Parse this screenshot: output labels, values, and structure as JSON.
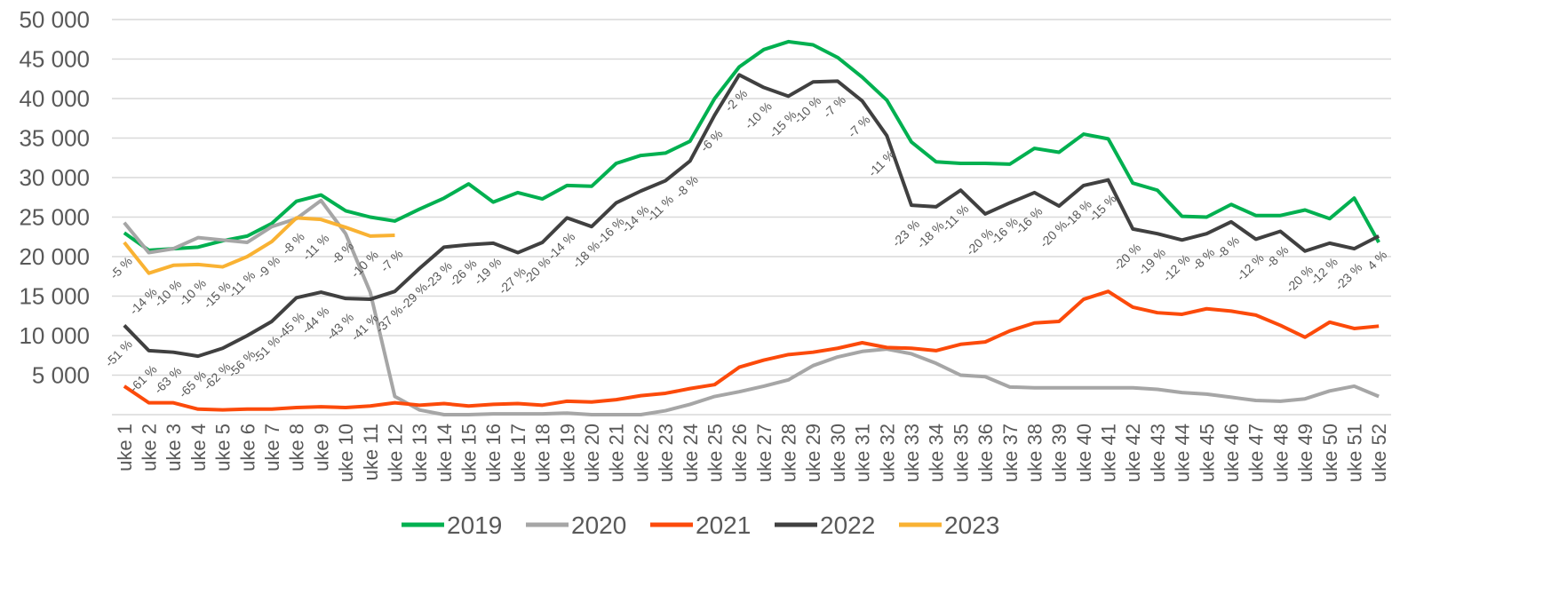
{
  "chart_data": {
    "type": "line",
    "categories": [
      "uke 1",
      "uke 2",
      "uke 3",
      "uke 4",
      "uke 5",
      "uke 6",
      "uke 7",
      "uke 8",
      "uke 9",
      "uke 10",
      "uke 11",
      "uke 12",
      "uke 13",
      "uke 14",
      "uke 15",
      "uke 16",
      "uke 17",
      "uke 18",
      "uke 19",
      "uke 20",
      "uke 21",
      "uke 22",
      "uke 23",
      "uke 24",
      "uke 25",
      "uke 26",
      "uke 27",
      "uke 28",
      "uke 29",
      "uke 30",
      "uke 31",
      "uke 32",
      "uke 33",
      "uke 34",
      "uke 35",
      "uke 36",
      "uke 37",
      "uke 38",
      "uke 39",
      "uke 40",
      "uke 41",
      "uke 42",
      "uke 43",
      "uke 44",
      "uke 45",
      "uke 46",
      "uke 47",
      "uke 48",
      "uke 49",
      "uke 50",
      "uke 51",
      "uke 52"
    ],
    "ylim": [
      0,
      50000
    ],
    "yticks": [
      {
        "value": 5000,
        "label": "5 000"
      },
      {
        "value": 10000,
        "label": "10 000"
      },
      {
        "value": 15000,
        "label": "15 000"
      },
      {
        "value": 20000,
        "label": "20 000"
      },
      {
        "value": 25000,
        "label": "25 000"
      },
      {
        "value": 30000,
        "label": "30 000"
      },
      {
        "value": 35000,
        "label": "35 000"
      },
      {
        "value": 40000,
        "label": "40 000"
      },
      {
        "value": 45000,
        "label": "45 000"
      },
      {
        "value": 50000,
        "label": "50 000"
      }
    ],
    "grid": true,
    "legend": "bottom",
    "series": [
      {
        "name": "2019",
        "color": "#00b050",
        "values": [
          23000,
          20800,
          21000,
          21200,
          22000,
          22600,
          24200,
          27000,
          27800,
          25800,
          25000,
          24500,
          26000,
          27400,
          29200,
          26900,
          28100,
          27300,
          29000,
          28900,
          31800,
          32800,
          33100,
          34600,
          40000,
          44000,
          46200,
          47200,
          46800,
          45200,
          42700,
          39800,
          34500,
          32000,
          31800,
          31800,
          31700,
          33700,
          33200,
          35500,
          34900,
          29300,
          28400,
          25100,
          25000,
          26600,
          25200,
          25200,
          25900,
          24800,
          27400,
          21800
        ]
      },
      {
        "name": "2020",
        "color": "#a6a6a6",
        "values": [
          24300,
          20500,
          21000,
          22400,
          22100,
          21800,
          23800,
          24800,
          27100,
          22900,
          15500,
          2300,
          600,
          0,
          0,
          100,
          100,
          100,
          200,
          0,
          0,
          0,
          500,
          1300,
          2300,
          2900,
          3600,
          4400,
          6200,
          7300,
          8000,
          8300,
          7700,
          6500,
          5000,
          4800,
          3500,
          3400,
          3400,
          3400,
          3400,
          3400,
          3200,
          2800,
          2600,
          2200,
          1800,
          1700,
          2000,
          3000,
          3600,
          2300
        ]
      },
      {
        "name": "2021",
        "color": "#fc4a0a",
        "values": [
          3600,
          1500,
          1500,
          700,
          600,
          700,
          700,
          900,
          1000,
          900,
          1100,
          1500,
          1200,
          1400,
          1100,
          1300,
          1400,
          1200,
          1700,
          1600,
          1900,
          2400,
          2700,
          3300,
          3800,
          6000,
          6900,
          7600,
          7900,
          8400,
          9100,
          8500,
          8400,
          8100,
          8900,
          9200,
          10600,
          11600,
          11800,
          14600,
          15600,
          13600,
          12900,
          12700,
          13400,
          13100,
          12600,
          11300,
          9800,
          11700,
          10900,
          11200
        ]
      },
      {
        "name": "2022",
        "color": "#404040",
        "values": [
          11300,
          8100,
          7900,
          7400,
          8400,
          10000,
          11800,
          14800,
          15500,
          14700,
          14600,
          15600,
          18500,
          21200,
          21500,
          21700,
          20500,
          21800,
          24900,
          23800,
          26800,
          28300,
          29600,
          32100,
          37900,
          43000,
          41400,
          40300,
          42100,
          42200,
          39700,
          35300,
          26500,
          26300,
          28400,
          25400,
          26800,
          28100,
          26400,
          29000,
          29700,
          23500,
          22900,
          22100,
          22900,
          24400,
          22200,
          23200,
          20700,
          21700,
          21000,
          22600
        ],
        "labels": [
          "-51 %",
          "-61 %",
          "-63 %",
          "-65 %",
          "-62 %",
          "-56 %",
          "-51 %",
          "-45 %",
          "-44 %",
          "-43 %",
          "-41 %",
          "-37 %",
          "-29 %",
          "-23 %",
          "-26 %",
          "-19 %",
          "-27 %",
          "-20 %",
          "-14 %",
          "-18 %",
          "-16 %",
          "-14 %",
          "-11 %",
          "-8 %",
          "-6 %",
          "-2 %",
          "-10 %",
          "-15 %",
          "-10 %",
          "-7 %",
          "-7 %",
          "-11 %",
          "-23 %",
          "-18 %",
          "-11 %",
          "-20 %",
          "-16 %",
          "-16 %",
          "-20 %",
          "-18 %",
          "-15 %",
          "-20 %",
          "-19 %",
          "-12 %",
          "-8 %",
          "-8 %",
          "-12 %",
          "-8 %",
          "-20 %",
          "-12 %",
          "-23 %",
          "4 %"
        ]
      },
      {
        "name": "2023",
        "color": "#f9b233",
        "values": [
          21800,
          17900,
          18900,
          19000,
          18700,
          20000,
          21900,
          24900,
          24700,
          23700,
          22600,
          22700,
          null,
          null,
          null,
          null,
          null,
          null,
          null,
          null,
          null,
          null,
          null,
          null,
          null,
          null,
          null,
          null,
          null,
          null,
          null,
          null,
          null,
          null,
          null,
          null,
          null,
          null,
          null,
          null,
          null,
          null,
          null,
          null,
          null,
          null,
          null,
          null,
          null,
          null,
          null,
          null
        ],
        "labels": [
          "-5 %",
          "-14 %",
          "-10 %",
          "-10 %",
          "-15 %",
          "-11 %",
          "-9 %",
          "-8 %",
          "-11 %",
          "-8 %",
          "-10 %",
          "-7 %",
          null,
          null,
          null,
          null,
          null,
          null,
          null,
          null,
          null,
          null,
          null,
          null,
          null,
          null,
          null,
          null,
          null,
          null,
          null,
          null,
          null,
          null,
          null,
          null,
          null,
          null,
          null,
          null,
          null,
          null,
          null,
          null,
          null,
          null,
          null,
          null,
          null,
          null,
          null,
          null
        ]
      }
    ]
  }
}
